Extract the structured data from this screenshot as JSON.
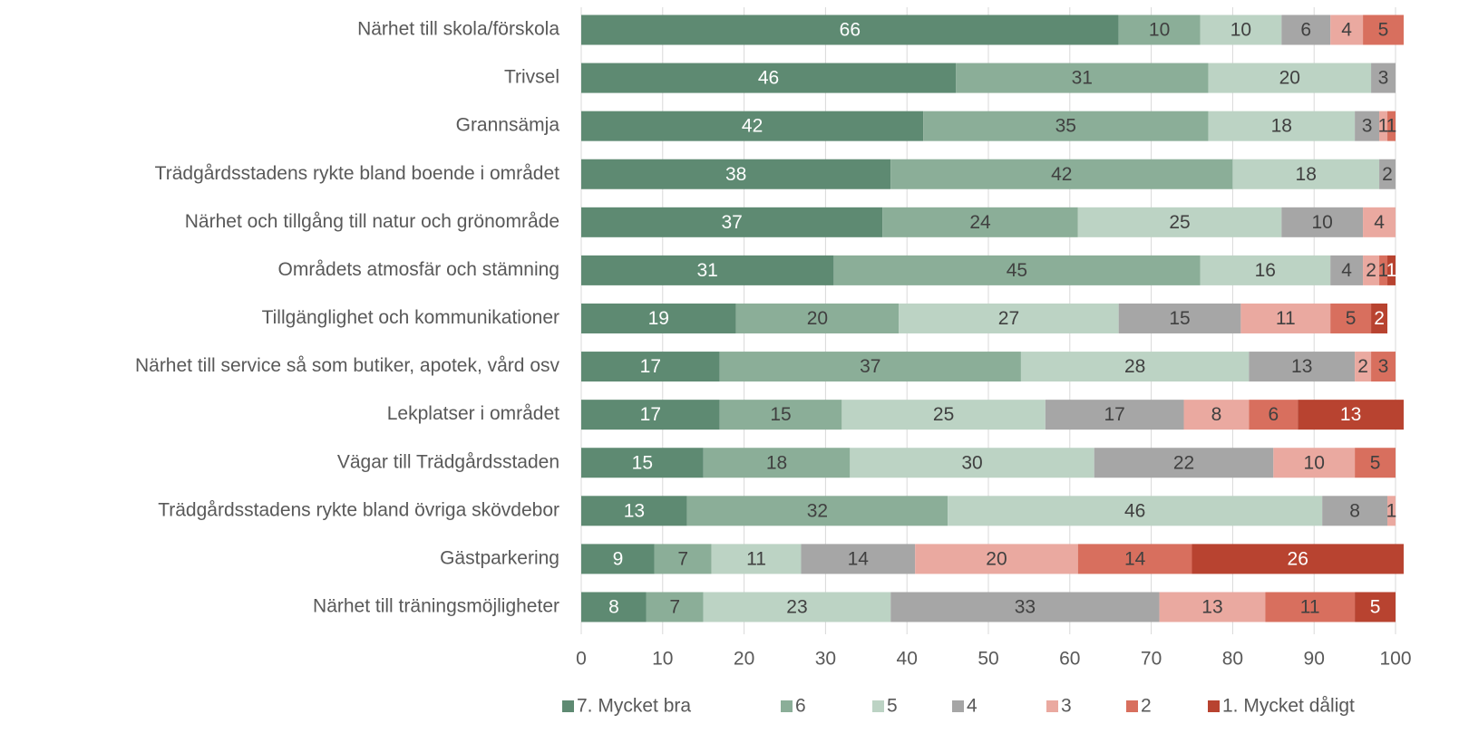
{
  "chart_data": {
    "type": "stacked_barh",
    "categories": [
      "Närhet till skola/förskola",
      "Trivsel",
      "Grannsämja",
      "Trädgårdsstadens rykte bland boende i området",
      "Närhet och tillgång till natur och grönområde",
      "Områdets atmosfär och stämning",
      "Tillgänglighet och kommunikationer",
      "Närhet till service så som butiker, apotek, vård osv",
      "Lekplatser i området",
      "Vägar till Trädgårdsstaden",
      "Trädgårdsstadens rykte bland övriga skövdebor",
      "Gästparkering",
      "Närhet till träningsmöjligheter"
    ],
    "series": [
      {
        "name": "7. Mycket bra",
        "color": "#5e8a72",
        "values": [
          66,
          46,
          42,
          38,
          37,
          31,
          19,
          17,
          17,
          15,
          13,
          9,
          8
        ]
      },
      {
        "name": "6",
        "color": "#8bae98",
        "values": [
          10,
          31,
          35,
          42,
          24,
          45,
          20,
          37,
          15,
          18,
          32,
          7,
          7
        ]
      },
      {
        "name": "5",
        "color": "#bcd3c4",
        "values": [
          10,
          20,
          18,
          18,
          25,
          16,
          27,
          28,
          25,
          30,
          46,
          11,
          23
        ]
      },
      {
        "name": "4",
        "color": "#a6a6a6",
        "values": [
          6,
          3,
          3,
          2,
          10,
          4,
          15,
          13,
          17,
          22,
          8,
          14,
          33
        ]
      },
      {
        "name": "3",
        "color": "#eaa9a0",
        "values": [
          4,
          null,
          1,
          null,
          4,
          2,
          11,
          2,
          8,
          10,
          1,
          20,
          13
        ]
      },
      {
        "name": "2",
        "color": "#d86f5e",
        "values": [
          5,
          null,
          1,
          null,
          null,
          1,
          5,
          3,
          6,
          5,
          null,
          14,
          11
        ]
      },
      {
        "name": "1. Mycket dåligt",
        "color": "#b84330",
        "values": [
          null,
          null,
          null,
          null,
          null,
          1,
          2,
          null,
          13,
          null,
          null,
          26,
          5
        ]
      }
    ],
    "xlim": [
      0,
      100
    ],
    "xticks": [
      0,
      10,
      20,
      30,
      40,
      50,
      60,
      70,
      80,
      90,
      100
    ],
    "grid": true,
    "legend": "bottom"
  }
}
